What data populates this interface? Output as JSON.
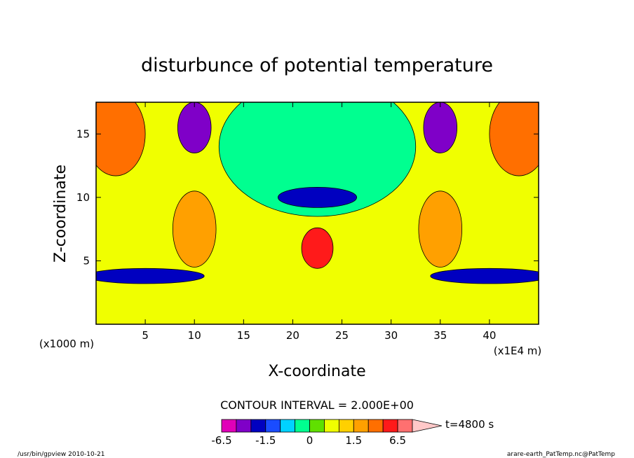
{
  "chart_data": {
    "type": "heatmap",
    "title": "disturbunce of potential temperature",
    "xlabel": "X-coordinate",
    "ylabel": "Z-coordinate",
    "x_scale_note": "(x1E4 m)",
    "y_scale_note": "(x1000 m)",
    "xlim": [
      0,
      45
    ],
    "ylim": [
      0,
      17.5
    ],
    "x_ticks": [
      5,
      10,
      15,
      20,
      25,
      30,
      35,
      40
    ],
    "y_ticks": [
      5,
      10,
      15
    ],
    "contour_interval_label": "CONTOUR INTERVAL = 2.000E+00",
    "time_label": "t=4800 s",
    "colorbar": {
      "tick_labels": [
        "-6.5",
        "-1.5",
        "0",
        "1.5",
        "6.5"
      ],
      "tick_values": [
        -6.5,
        -1.5,
        0,
        1.5,
        6.5
      ],
      "segments": [
        {
          "from": -6.5,
          "to": -4.5,
          "color": "#e000b8"
        },
        {
          "from": -4.5,
          "to": -2.5,
          "color": "#7f00c8"
        },
        {
          "from": -2.5,
          "to": -1.5,
          "color": "#0000c0"
        },
        {
          "from": -1.5,
          "to": -1.0,
          "color": "#1a4cff"
        },
        {
          "from": -1.0,
          "to": -0.5,
          "color": "#00d2ff"
        },
        {
          "from": -0.5,
          "to": 0.0,
          "color": "#00ff90"
        },
        {
          "from": 0.0,
          "to": 0.5,
          "color": "#60e000"
        },
        {
          "from": 0.5,
          "to": 1.0,
          "color": "#f0ff00"
        },
        {
          "from": 1.0,
          "to": 1.5,
          "color": "#ffd000"
        },
        {
          "from": 1.5,
          "to": 2.5,
          "color": "#ffa000"
        },
        {
          "from": 2.5,
          "to": 4.5,
          "color": "#ff6f00"
        },
        {
          "from": 4.5,
          "to": 6.5,
          "color": "#ff1a1a"
        },
        {
          "from": 6.5,
          "to": 8.5,
          "color": "#ff7070"
        },
        {
          "from": 8.5,
          "to": 9.5,
          "color": "#ffc8c8"
        }
      ]
    },
    "features": [
      {
        "label": "background",
        "value": 0.75
      },
      {
        "label": "warm-left-top",
        "x": 2.0,
        "z": 15.0,
        "rx": 3.0,
        "rz": 3.3,
        "value": 3.5
      },
      {
        "label": "warm-right-top",
        "x": 43.0,
        "z": 15.0,
        "rx": 3.0,
        "rz": 3.3,
        "value": 3.5
      },
      {
        "label": "warm-left-mid",
        "x": 10.0,
        "z": 7.5,
        "rx": 2.2,
        "rz": 3.0,
        "value": 1.5
      },
      {
        "label": "warm-right-mid",
        "x": 35.0,
        "z": 7.5,
        "rx": 2.2,
        "rz": 3.0,
        "value": 1.5
      },
      {
        "label": "warm-center",
        "x": 22.5,
        "z": 6.0,
        "rx": 1.6,
        "rz": 1.6,
        "value": 5.0
      },
      {
        "label": "green-cap",
        "x": 22.5,
        "z": 14.0,
        "rx": 10.0,
        "rz": 5.5,
        "value": -0.25
      },
      {
        "label": "cold-left-top",
        "x": 10.0,
        "z": 15.5,
        "rx": 1.7,
        "rz": 2.0,
        "value": -4.0
      },
      {
        "label": "cold-right-top",
        "x": 35.0,
        "z": 15.5,
        "rx": 1.7,
        "rz": 2.0,
        "value": -4.0
      },
      {
        "label": "cold-center",
        "x": 22.5,
        "z": 10.0,
        "rx": 4.0,
        "rz": 0.8,
        "value": -2.0
      },
      {
        "label": "low-cold-left",
        "x": 5.0,
        "z": 3.8,
        "rx": 6.0,
        "rz": 0.6,
        "value": -2.0
      },
      {
        "label": "low-cold-right",
        "x": 40.0,
        "z": 3.8,
        "rx": 6.0,
        "rz": 0.6,
        "value": -2.0
      }
    ]
  },
  "footer": {
    "left": "/usr/bin/gpview  2010-10-21",
    "right": "arare-earth_PatTemp.nc@PatTemp"
  }
}
